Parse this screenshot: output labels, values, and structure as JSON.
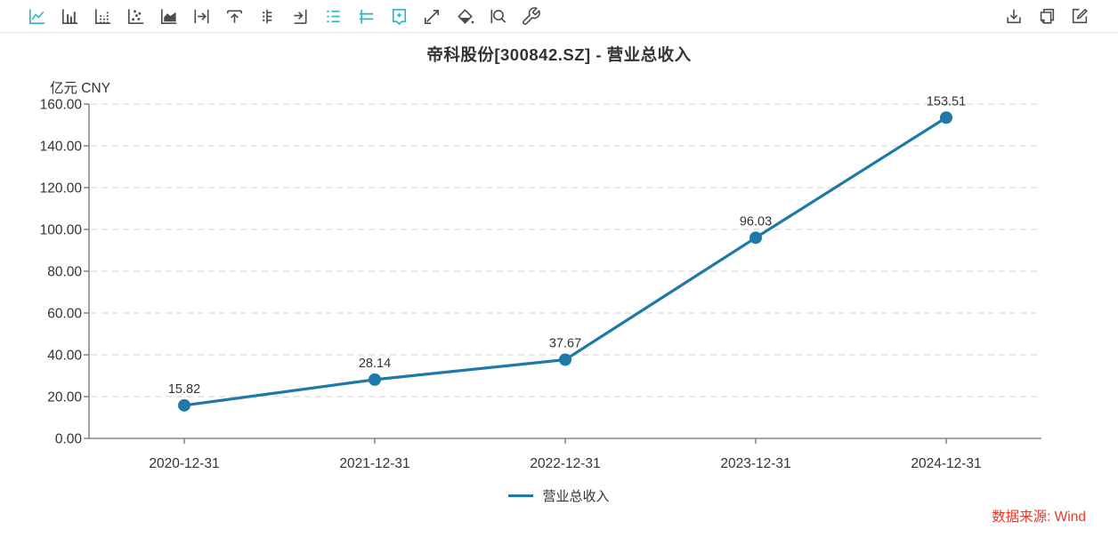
{
  "toolbar": {
    "left_icons": [
      {
        "icon": "line-chart-icon",
        "active": true
      },
      {
        "icon": "bar-chart-icon",
        "active": false
      },
      {
        "icon": "dotted-bar-chart-icon",
        "active": false
      },
      {
        "icon": "scatter-chart-icon",
        "active": false
      },
      {
        "icon": "area-chart-icon",
        "active": false
      },
      {
        "icon": "shift-right-icon",
        "active": false
      },
      {
        "icon": "shift-up-icon",
        "active": false
      },
      {
        "icon": "axis-style-icon",
        "active": false
      },
      {
        "icon": "move-axis-right-icon",
        "active": false
      },
      {
        "icon": "data-label-list-icon",
        "active": true
      },
      {
        "icon": "legend-style-icon",
        "active": true
      },
      {
        "icon": "bookmark-add-icon",
        "active": true
      },
      {
        "icon": "trend-line-icon",
        "active": false
      },
      {
        "icon": "fill-style-icon",
        "active": false
      },
      {
        "icon": "zoom-icon",
        "active": false
      },
      {
        "icon": "settings-wrench-icon",
        "active": false
      }
    ],
    "right_icons": [
      {
        "icon": "download-icon"
      },
      {
        "icon": "copy-icon"
      },
      {
        "icon": "edit-icon"
      }
    ]
  },
  "chart": {
    "title": "帝科股份[300842.SZ] - 营业总收入",
    "unit_label": "亿元  CNY"
  },
  "chart_data": {
    "type": "line",
    "title": "帝科股份[300842.SZ] - 营业总收入",
    "unit": "亿元 CNY",
    "categories": [
      "2020-12-31",
      "2021-12-31",
      "2022-12-31",
      "2023-12-31",
      "2024-12-31"
    ],
    "series": [
      {
        "name": "营业总收入",
        "values": [
          15.82,
          28.14,
          37.67,
          96.03,
          153.51
        ],
        "color": "#1f78a8"
      }
    ],
    "ylim": [
      0,
      160
    ],
    "ytick_step": 20,
    "ytick_decimals": 2,
    "grid": "dashed-horizontal",
    "legend_position": "bottom",
    "data_labels": true
  },
  "legend": {
    "label": "营业总收入"
  },
  "footer": {
    "source": "数据来源: Wind"
  },
  "colors": {
    "accent_teal": "#2eb6c7",
    "icon_gray": "#4c4c4c",
    "series_line": "#1f78a8",
    "axis_line": "#707070",
    "grid_line": "#e2e2e2",
    "text": "#333333",
    "source_red": "#e23b2e"
  }
}
